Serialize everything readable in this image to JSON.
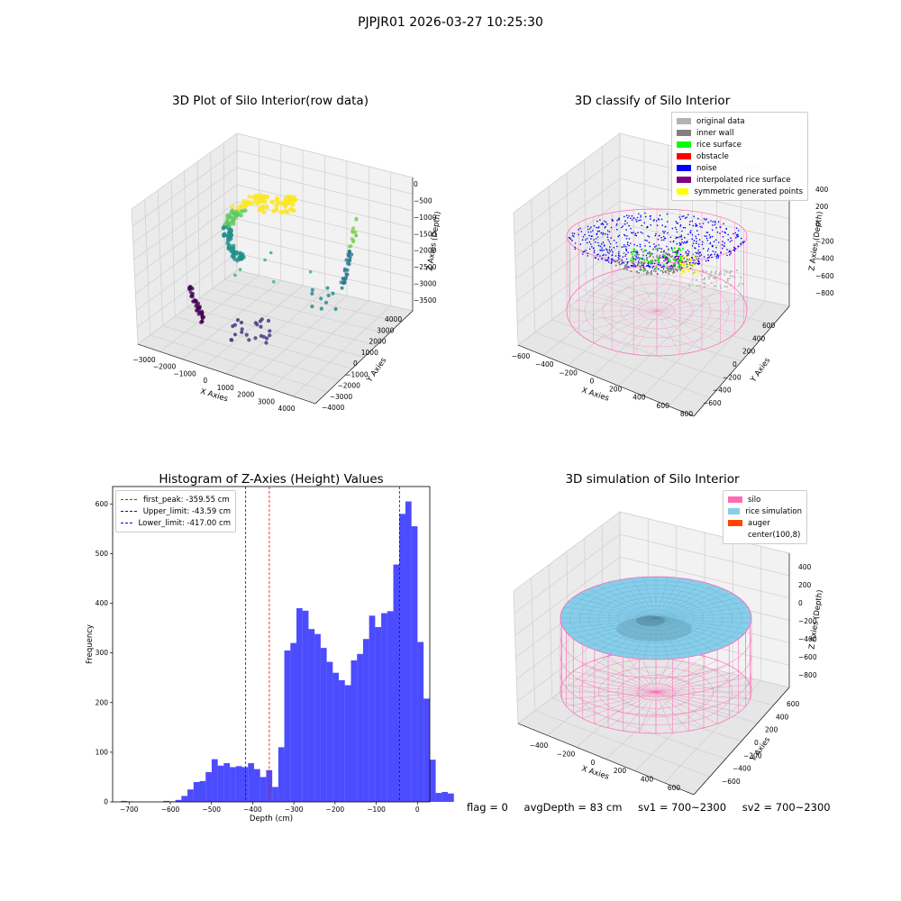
{
  "suptitle": "PJPJR01 2026-03-27 10:25:30",
  "panels": {
    "raw": {
      "title": "3D Plot of Silo Interior(row data)",
      "xlabel": "X Axies",
      "ylabel": "Y Axies",
      "zlabel": "Z Axies (Depth)",
      "xticks": [
        "−3000",
        "−2000",
        "−1000",
        "0",
        "1000",
        "2000",
        "3000",
        "4000"
      ],
      "yticks": [
        "4000",
        "3000",
        "2000",
        "1000",
        "0",
        "−1000",
        "−2000",
        "−3000",
        "−4000"
      ],
      "zticks": [
        "0",
        "−500",
        "−1000",
        "−1500",
        "−2000",
        "−2500",
        "−3000",
        "−3500"
      ]
    },
    "classify": {
      "title": "3D classify of Silo Interior",
      "xlabel": "X Axies",
      "ylabel": "Y Axies",
      "zlabel": "Z Axies (Depth)",
      "xticks": [
        "−600",
        "−400",
        "−200",
        "0",
        "200",
        "400",
        "600",
        "800"
      ],
      "yticks": [
        "600",
        "400",
        "200",
        "0",
        "−200",
        "−400",
        "−600"
      ],
      "zticks": [
        "400",
        "200",
        "0",
        "−200",
        "−400",
        "−600",
        "−800"
      ],
      "legend": [
        {
          "label": "original data",
          "color": "#b3b3b3"
        },
        {
          "label": "inner wall",
          "color": "#808080"
        },
        {
          "label": "rice surface",
          "color": "#00ff00"
        },
        {
          "label": "obstacle",
          "color": "#ff0000"
        },
        {
          "label": "noise",
          "color": "#0000ff"
        },
        {
          "label": "interpolated rice surface",
          "color": "#800080"
        },
        {
          "label": "symmetric generated points",
          "color": "#ffff00"
        }
      ]
    },
    "simulation": {
      "title": "3D simulation of Silo Interior",
      "xlabel": "X Axies",
      "ylabel": "Y Axies",
      "zlabel": "Z Axies (Depth)",
      "xticks": [
        "−400",
        "−200",
        "0",
        "200",
        "400",
        "600"
      ],
      "yticks": [
        "600",
        "400",
        "200",
        "0",
        "−200",
        "−400",
        "−600"
      ],
      "zticks": [
        "400",
        "200",
        "0",
        "−200",
        "−400",
        "−600",
        "−800"
      ],
      "legend": [
        {
          "label": "silo",
          "color": "#ff69b4"
        },
        {
          "label": "rice simulation",
          "color": "#87ceeb"
        },
        {
          "label": "auger",
          "color": "#ff4500"
        },
        {
          "label": "center(100,8)",
          "color": "transparent"
        }
      ]
    }
  },
  "status": {
    "flag": "flag = 0",
    "avg_depth": "avgDepth = 83 cm",
    "sv1": "sv1 = 700~2300",
    "sv2": "sv2 = 700~2300"
  },
  "chart_data": [
    {
      "type": "bar",
      "title": "Histogram of Z-Axies (Height) Values",
      "xlabel": "Depth (cm)",
      "ylabel": "Frequency",
      "bar_color": "#0000ff",
      "xlim": [
        -740,
        30
      ],
      "ylim": [
        0,
        635
      ],
      "xticks": [
        -700,
        -600,
        -500,
        -400,
        -300,
        -200,
        -100,
        0
      ],
      "yticks": [
        0,
        100,
        200,
        300,
        400,
        500,
        600
      ],
      "bin_width": 14.7,
      "bin_start": -720,
      "values": [
        2,
        1,
        0,
        0,
        0,
        0,
        0,
        2,
        1,
        4,
        12,
        25,
        40,
        42,
        60,
        86,
        73,
        78,
        70,
        72,
        70,
        78,
        66,
        50,
        64,
        30,
        110,
        305,
        320,
        390,
        385,
        348,
        338,
        310,
        282,
        260,
        245,
        235,
        285,
        298,
        328,
        375,
        352,
        380,
        384,
        478,
        580,
        605,
        555,
        322,
        208,
        85,
        18,
        20,
        17
      ],
      "vlines": [
        {
          "label": "first_peak: -359.55 cm",
          "x": -359.55,
          "color": "#ff0000"
        },
        {
          "label": "Upper_limit: -43.59 cm",
          "x": -43.59,
          "color": "#0000ff"
        },
        {
          "label": "Lower_limit: -417.00 cm",
          "x": -417.0,
          "color": "#0000ff"
        }
      ]
    }
  ]
}
